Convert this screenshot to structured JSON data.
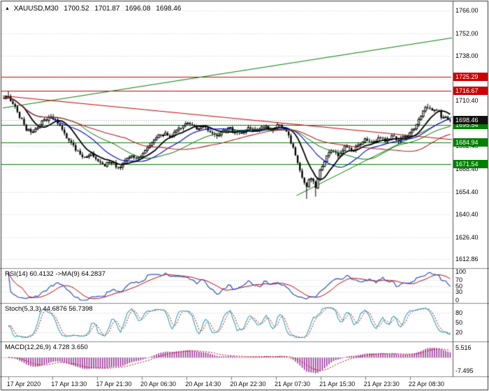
{
  "header": {
    "icon": "▲",
    "symbol": "XAUUSD,M30",
    "open": "1700.52",
    "high": "1701.87",
    "low": "1696.08",
    "close": "1698.46"
  },
  "price_axis": {
    "ticks": [
      "1766.00",
      "1752.00",
      "1738.00",
      "1724.00",
      "1710.40",
      "1696.40",
      "1682.40",
      "1668.40",
      "1654.40",
      "1640.40",
      "1626.40",
      "1612.86"
    ],
    "badges": [
      {
        "value": "1725.29",
        "kind": "resistance",
        "color": "#CC0000"
      },
      {
        "value": "1716.67",
        "kind": "resistance",
        "color": "#CC0000"
      },
      {
        "value": "1695.54",
        "kind": "support",
        "color": "#008000"
      },
      {
        "value": "1684.94",
        "kind": "support",
        "color": "#008000"
      },
      {
        "value": "1671.54",
        "kind": "support",
        "color": "#008000"
      },
      {
        "value": "1698.46",
        "kind": "bid",
        "color": "#101010"
      }
    ]
  },
  "time_axis": {
    "labels": [
      {
        "text": "17 Apr 2020",
        "f": 0.012
      },
      {
        "text": "17 Apr 13:30",
        "f": 0.111
      },
      {
        "text": "17 Apr 21:30",
        "f": 0.211
      },
      {
        "text": "20 Apr 06:30",
        "f": 0.31
      },
      {
        "text": "20 Apr 14:30",
        "f": 0.41
      },
      {
        "text": "20 Apr 22:30",
        "f": 0.51
      },
      {
        "text": "21 Apr 07:30",
        "f": 0.609
      },
      {
        "text": "21 Apr 15:30",
        "f": 0.709
      },
      {
        "text": "21 Apr 23:30",
        "f": 0.808
      },
      {
        "text": "22 Apr 08:30",
        "f": 0.908
      }
    ]
  },
  "panels": {
    "rsi": {
      "label": "RSI(14) 60.4132 ->MA(9) 64.2837",
      "value": 60.4132,
      "ma_value": 64.2837,
      "ticks": [
        "100",
        "70",
        "50",
        "30",
        "0"
      ],
      "levels": [
        70,
        50,
        30
      ],
      "range": [
        0,
        100
      ],
      "line_color": "#2A52BE",
      "signal_color": "#C00000"
    },
    "stoch": {
      "label": "Stoch(5,3,3) 44.6876 56.7398",
      "value": 44.6876,
      "signal": 56.7398,
      "ticks": [
        "80",
        "50",
        "20"
      ],
      "levels": [
        80,
        20
      ],
      "range": [
        0,
        100
      ],
      "line_color": "#2FA4B7",
      "signal_color": "#C00000"
    },
    "macd": {
      "label": "MACD(12,26,9) 4.728 3.650",
      "value": 4.728,
      "signal": 3.65,
      "ticks": [
        "5.516",
        "-7.495"
      ],
      "levels": [
        0
      ],
      "range": [
        -9.5,
        7.6
      ],
      "hist_color": "#993399",
      "signal_color": "#C00000"
    }
  },
  "chart_data": {
    "type": "candlestick",
    "symbol": "XAUUSD",
    "timeframe": "M30",
    "current_ohlc": {
      "open": 1700.52,
      "high": 1701.87,
      "low": 1696.08,
      "close": 1698.46
    },
    "price_range": [
      1609,
      1770
    ],
    "num_candles": 200,
    "grid_color": "#CFCFCF",
    "candle_colors": {
      "up_fill": "#FFFFFF",
      "down_fill": "#000000",
      "outline": "#000000"
    },
    "close_path_anchors": [
      [
        0,
        1711.5
      ],
      [
        0.008,
        1713.5
      ],
      [
        0.02,
        1709
      ],
      [
        0.035,
        1701
      ],
      [
        0.05,
        1693
      ],
      [
        0.062,
        1690.5
      ],
      [
        0.075,
        1694
      ],
      [
        0.09,
        1698.5
      ],
      [
        0.105,
        1700.5
      ],
      [
        0.12,
        1697
      ],
      [
        0.135,
        1691
      ],
      [
        0.15,
        1684
      ],
      [
        0.165,
        1679.5
      ],
      [
        0.18,
        1674.5
      ],
      [
        0.195,
        1677.5
      ],
      [
        0.21,
        1673
      ],
      [
        0.225,
        1670.5
      ],
      [
        0.24,
        1673.5
      ],
      [
        0.255,
        1669.5
      ],
      [
        0.27,
        1672.5
      ],
      [
        0.285,
        1677
      ],
      [
        0.3,
        1674.5
      ],
      [
        0.315,
        1679.5
      ],
      [
        0.335,
        1686
      ],
      [
        0.355,
        1690.5
      ],
      [
        0.375,
        1688
      ],
      [
        0.395,
        1693.5
      ],
      [
        0.415,
        1697
      ],
      [
        0.43,
        1692.5
      ],
      [
        0.445,
        1695
      ],
      [
        0.46,
        1691
      ],
      [
        0.475,
        1688
      ],
      [
        0.49,
        1691.5
      ],
      [
        0.505,
        1694
      ],
      [
        0.52,
        1689.5
      ],
      [
        0.535,
        1691
      ],
      [
        0.55,
        1694
      ],
      [
        0.565,
        1692
      ],
      [
        0.58,
        1694.5
      ],
      [
        0.6,
        1693
      ],
      [
        0.615,
        1695.5
      ],
      [
        0.63,
        1692.5
      ],
      [
        0.645,
        1684
      ],
      [
        0.657,
        1673
      ],
      [
        0.668,
        1662
      ],
      [
        0.678,
        1657.5
      ],
      [
        0.688,
        1664
      ],
      [
        0.698,
        1656.5
      ],
      [
        0.708,
        1666.5
      ],
      [
        0.72,
        1674.5
      ],
      [
        0.735,
        1681
      ],
      [
        0.75,
        1676.5
      ],
      [
        0.765,
        1682
      ],
      [
        0.78,
        1679
      ],
      [
        0.795,
        1684
      ],
      [
        0.81,
        1687
      ],
      [
        0.825,
        1684
      ],
      [
        0.84,
        1687
      ],
      [
        0.855,
        1685.5
      ],
      [
        0.87,
        1688
      ],
      [
        0.885,
        1686
      ],
      [
        0.9,
        1688
      ],
      [
        0.912,
        1690.5
      ],
      [
        0.924,
        1695.5
      ],
      [
        0.936,
        1702
      ],
      [
        0.948,
        1707.5
      ],
      [
        0.958,
        1704
      ],
      [
        0.968,
        1706.5
      ],
      [
        0.978,
        1701.5
      ],
      [
        0.988,
        1699.5
      ],
      [
        1,
        1698.46
      ]
    ],
    "wick_events": [
      {
        "f": 0.678,
        "low_ext": 6.5
      },
      {
        "f": 0.698,
        "low_ext": 4.5
      },
      {
        "f": 0.008,
        "high_ext": 3
      },
      {
        "f": 0.948,
        "high_ext": 1.5
      }
    ],
    "horizontal_lines": [
      {
        "price": 1725.29,
        "color": "#CC0000",
        "style": "solid"
      },
      {
        "price": 1716.67,
        "color": "#CC0000",
        "style": "solid"
      },
      {
        "price": 1695.54,
        "color": "#008000",
        "style": "solid"
      },
      {
        "price": 1684.94,
        "color": "#008000",
        "style": "solid"
      },
      {
        "price": 1671.54,
        "color": "#008000",
        "style": "solid"
      },
      {
        "price": 1698.46,
        "color": "#999999",
        "style": "dotted"
      }
    ],
    "trendlines": [
      {
        "x1": 0.0,
        "p1": 1706,
        "x2": 1.02,
        "p2": 1750,
        "color": "#008000"
      },
      {
        "x1": 0.655,
        "p1": 1652,
        "x2": 1.02,
        "p2": 1703,
        "color": "#008000"
      },
      {
        "x1": 0.0,
        "p1": 1713.5,
        "x2": 1.02,
        "p2": 1686,
        "color": "#CC0000"
      }
    ],
    "moving_averages": [
      {
        "window": 10,
        "color": "#000000",
        "width": 1.8
      },
      {
        "window": 21,
        "color": "#0000CC",
        "width": 1.1
      },
      {
        "window": 34,
        "color": "#007000",
        "width": 1.0
      },
      {
        "window": 55,
        "color": "#B22222",
        "width": 1.1
      }
    ]
  }
}
